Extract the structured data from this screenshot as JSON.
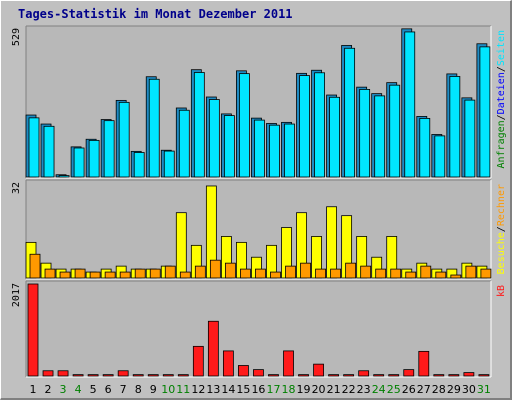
{
  "title": "Tages-Statistik im Monat Dezember 2011",
  "colors": {
    "background": "#c0c0c0",
    "plot_background": "#b8b8b8",
    "title": "#00008b",
    "anfragen": "#1e8bc3",
    "dateien": "#00e6ff",
    "seiten": "#ffff00",
    "besuche": "#ff9900",
    "rechner": "#ff9900",
    "kb": "#ff1a1a",
    "weekday_tick": "#000000",
    "weekend_tick": "#008000"
  },
  "chart_data": [
    {
      "type": "bar",
      "panel": "hits",
      "y_max_label": "529",
      "ylim": [
        0,
        529
      ],
      "legend_position": "right",
      "legend": [
        {
          "text": "Anfragen",
          "color": "#008000"
        },
        {
          "text": "/",
          "color": "#000000"
        },
        {
          "text": "Dateien",
          "color": "#0000ff"
        },
        {
          "text": "/",
          "color": "#000000"
        },
        {
          "text": "Seiten",
          "color": "#00e6ff"
        }
      ],
      "categories": [
        "1",
        "2",
        "3",
        "4",
        "5",
        "6",
        "7",
        "8",
        "9",
        "10",
        "11",
        "12",
        "13",
        "14",
        "15",
        "16",
        "17",
        "18",
        "19",
        "20",
        "21",
        "22",
        "23",
        "24",
        "25",
        "26",
        "27",
        "28",
        "29",
        "30",
        "31"
      ],
      "series": [
        {
          "name": "Anfragen",
          "values": [
            220,
            188,
            8,
            107,
            134,
            204,
            272,
            91,
            356,
            95,
            245,
            381,
            284,
            224,
            377,
            209,
            190,
            194,
            368,
            379,
            291,
            467,
            319,
            296,
            335,
            526,
            215,
            151,
            366,
            281,
            473
          ]
        },
        {
          "name": "Dateien",
          "values": [
            210,
            180,
            5,
            103,
            130,
            200,
            265,
            87,
            347,
            92,
            237,
            371,
            275,
            218,
            367,
            202,
            184,
            188,
            360,
            370,
            283,
            457,
            311,
            288,
            326,
            515,
            208,
            146,
            357,
            273,
            462
          ]
        }
      ]
    },
    {
      "type": "bar",
      "panel": "visits",
      "y_max_label": "32",
      "ylim": [
        0,
        32
      ],
      "legend_position": "right",
      "legend": [
        {
          "text": "Besuche",
          "color": "#ffff00"
        },
        {
          "text": "/",
          "color": "#000000"
        },
        {
          "text": "Rechner",
          "color": "#ff9900"
        }
      ],
      "categories": [
        "1",
        "2",
        "3",
        "4",
        "5",
        "6",
        "7",
        "8",
        "9",
        "10",
        "11",
        "12",
        "13",
        "14",
        "15",
        "16",
        "17",
        "18",
        "19",
        "20",
        "21",
        "22",
        "23",
        "24",
        "25",
        "26",
        "27",
        "28",
        "29",
        "30",
        "31"
      ],
      "series": [
        {
          "name": "Besuche",
          "values": [
            12,
            5,
            3,
            3,
            2,
            3,
            4,
            3,
            3,
            4,
            22,
            11,
            31,
            14,
            12,
            7,
            11,
            17,
            22,
            14,
            24,
            21,
            14,
            7,
            14,
            3,
            5,
            3,
            3,
            5,
            4
          ]
        },
        {
          "name": "Rechner",
          "values": [
            8,
            3,
            2,
            3,
            2,
            2,
            2,
            3,
            3,
            4,
            2,
            4,
            6,
            5,
            3,
            3,
            2,
            4,
            5,
            3,
            3,
            5,
            4,
            3,
            3,
            2,
            4,
            2,
            1,
            4,
            3
          ]
        }
      ]
    },
    {
      "type": "bar",
      "panel": "kb",
      "y_max_label": "2017",
      "ylim": [
        0,
        2017
      ],
      "legend_position": "right",
      "legend": [
        {
          "text": "kB",
          "color": "#ff1a1a"
        }
      ],
      "categories": [
        "1",
        "2",
        "3",
        "4",
        "5",
        "6",
        "7",
        "8",
        "9",
        "10",
        "11",
        "12",
        "13",
        "14",
        "15",
        "16",
        "17",
        "18",
        "19",
        "20",
        "21",
        "22",
        "23",
        "24",
        "25",
        "26",
        "27",
        "28",
        "29",
        "30",
        "31"
      ],
      "series": [
        {
          "name": "kB",
          "values": [
            2017,
            115,
            115,
            30,
            30,
            30,
            115,
            30,
            30,
            30,
            30,
            650,
            1200,
            550,
            230,
            140,
            30,
            550,
            30,
            260,
            30,
            30,
            115,
            30,
            30,
            140,
            540,
            30,
            30,
            75,
            30
          ]
        }
      ]
    }
  ],
  "x_labels": {
    "days": [
      "1",
      "2",
      "3",
      "4",
      "5",
      "6",
      "7",
      "8",
      "9",
      "10",
      "11",
      "12",
      "13",
      "14",
      "15",
      "16",
      "17",
      "18",
      "19",
      "20",
      "21",
      "22",
      "23",
      "24",
      "25",
      "26",
      "27",
      "28",
      "29",
      "30",
      "31"
    ],
    "weekend_days": [
      "3",
      "4",
      "10",
      "11",
      "17",
      "18",
      "24",
      "25",
      "31"
    ]
  }
}
